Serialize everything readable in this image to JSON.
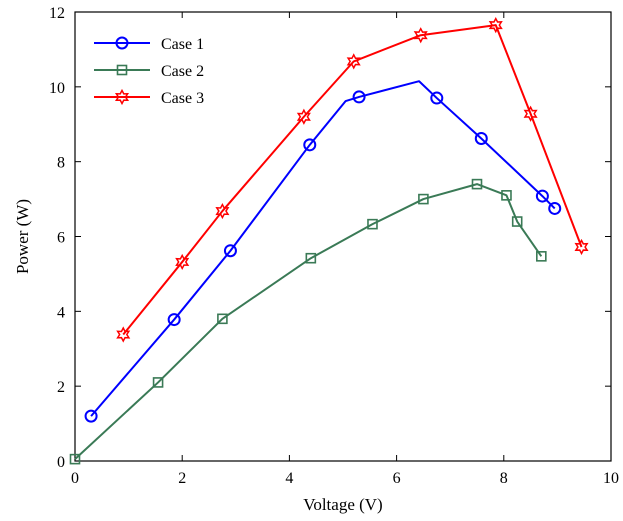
{
  "chart_data": {
    "type": "line",
    "title": "",
    "xlabel": "Voltage (V)",
    "ylabel": "Power (W)",
    "xlim": [
      0,
      10
    ],
    "ylim": [
      0,
      12
    ],
    "xticks": [
      0,
      2,
      4,
      6,
      8,
      10
    ],
    "yticks": [
      0,
      2,
      4,
      6,
      8,
      10,
      12
    ],
    "xtick_labels": [
      "0",
      "2",
      "4",
      "6",
      "8",
      "10"
    ],
    "ytick_labels": [
      "0",
      "2",
      "4",
      "6",
      "8",
      "10",
      "12"
    ],
    "grid": false,
    "legend_position": "top-left",
    "series": [
      {
        "name": "Case 1",
        "color": "#0000ff",
        "marker": "circle",
        "x": [
          0.3,
          1.85,
          2.9,
          4.38,
          5.05,
          5.3,
          6.42,
          6.75,
          7.58,
          8.72,
          8.95
        ],
        "y": [
          1.2,
          3.78,
          5.62,
          8.45,
          9.62,
          9.73,
          10.15,
          9.7,
          8.62,
          7.08,
          6.75
        ],
        "marked": [
          true,
          true,
          true,
          true,
          false,
          true,
          false,
          true,
          true,
          true,
          true
        ]
      },
      {
        "name": "Case 2",
        "color": "#3a7a56",
        "marker": "square",
        "x": [
          0.0,
          1.55,
          2.75,
          4.4,
          5.55,
          6.5,
          7.5,
          8.05,
          8.25,
          8.7
        ],
        "y": [
          0.05,
          2.1,
          3.8,
          5.42,
          6.33,
          7.0,
          7.4,
          7.1,
          6.4,
          5.47
        ],
        "marked": [
          true,
          true,
          true,
          true,
          true,
          true,
          true,
          true,
          true,
          true
        ]
      },
      {
        "name": "Case 3",
        "color": "#ff0000",
        "marker": "hexagram",
        "x": [
          0.9,
          2.0,
          2.75,
          4.27,
          5.2,
          6.45,
          7.85,
          8.5,
          9.45
        ],
        "y": [
          3.38,
          5.32,
          6.68,
          9.2,
          10.68,
          11.38,
          11.65,
          9.28,
          5.72
        ],
        "marked": [
          true,
          true,
          true,
          true,
          true,
          true,
          true,
          true,
          true
        ]
      }
    ]
  }
}
